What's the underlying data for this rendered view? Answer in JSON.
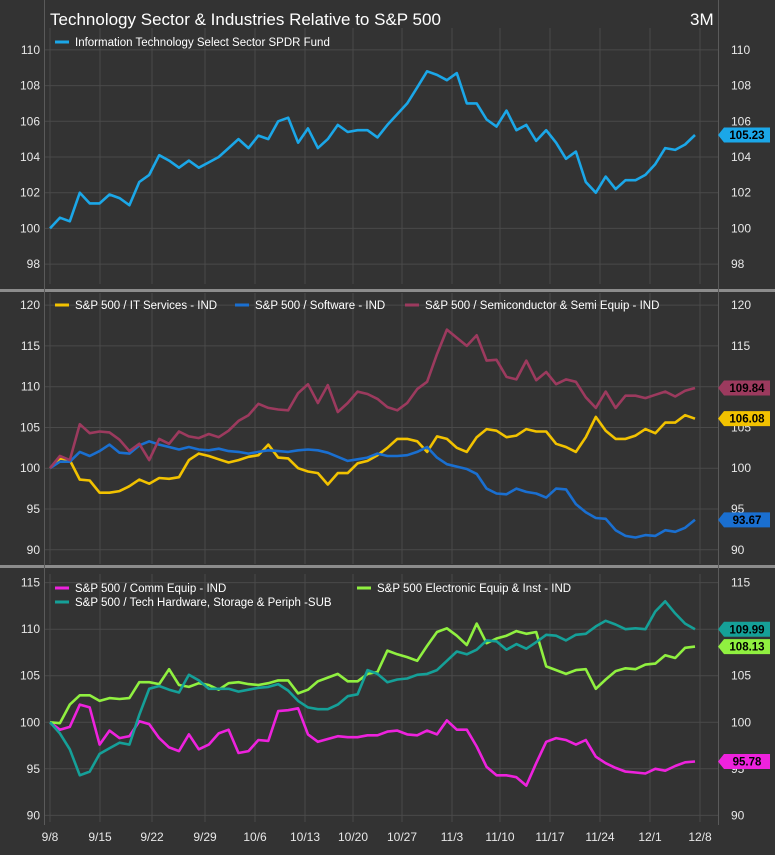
{
  "title": "Technology Sector & Industries Relative to S&P 500",
  "period": "3M",
  "colors": {
    "background": "#000000",
    "panel": "#333333",
    "grid": "#4a4a4a",
    "divider": "#8c8c8c"
  },
  "chart_data": [
    {
      "type": "line",
      "panel": "top",
      "ylim": [
        97,
        111
      ],
      "yticks": [
        98,
        100,
        102,
        104,
        106,
        108,
        110
      ],
      "x_tick_labels": [
        "9/8",
        "9/15",
        "9/22",
        "9/29",
        "10/6",
        "10/13",
        "10/20",
        "10/27",
        "11/3",
        "11/10",
        "11/17",
        "11/24",
        "12/1",
        "12/8"
      ],
      "series": [
        {
          "name": "Information Technology Select Sector SPDR Fund",
          "color": "#1ba7e8",
          "last_label": "105.23",
          "values": [
            100,
            100.6,
            100.4,
            102,
            101.4,
            101.4,
            101.9,
            101.7,
            101.3,
            102.6,
            103,
            104.1,
            103.8,
            103.4,
            103.8,
            103.4,
            103.7,
            104,
            104.5,
            105,
            104.5,
            105.2,
            105,
            106,
            106.2,
            104.8,
            105.6,
            104.5,
            105,
            105.8,
            105.4,
            105.5,
            105.5,
            105.1,
            105.8,
            106.4,
            107,
            107.9,
            108.8,
            108.6,
            108.3,
            108.7,
            107,
            107,
            106.1,
            105.7,
            106.6,
            105.5,
            105.8,
            104.9,
            105.5,
            104.8,
            103.9,
            104.3,
            102.6,
            102,
            102.9,
            102.2,
            102.7,
            102.7,
            103,
            103.6,
            104.5,
            104.4,
            104.7,
            105.23
          ]
        }
      ]
    },
    {
      "type": "line",
      "panel": "middle",
      "ylim": [
        88.5,
        121
      ],
      "yticks": [
        90,
        95,
        100,
        105,
        110,
        115,
        120
      ],
      "series": [
        {
          "name": "S&P 500 / IT Services - IND",
          "color": "#f2c200",
          "last_label": "106.08",
          "values": [
            100,
            101.2,
            101,
            98.6,
            98.5,
            97,
            97,
            97.2,
            97.8,
            98.6,
            98.1,
            98.8,
            98.7,
            98.9,
            101,
            101.8,
            101.5,
            101.1,
            100.7,
            101,
            101.4,
            101.6,
            102.9,
            101.3,
            101.2,
            100,
            99.6,
            99.4,
            98,
            99.4,
            99.4,
            100.6,
            100.9,
            101.6,
            102.5,
            103.6,
            103.6,
            103.3,
            102,
            103.9,
            103.6,
            102.5,
            102,
            103.8,
            104.8,
            104.6,
            103.8,
            104,
            104.8,
            104.5,
            104.5,
            103,
            102.6,
            102,
            103.8,
            106.3,
            104.6,
            103.6,
            103.6,
            104,
            104.8,
            104.3,
            105.6,
            105.6,
            106.5,
            106.08
          ]
        },
        {
          "name": "S&P 500 / Software - IND",
          "color": "#1a6fd0",
          "last_label": "93.67",
          "values": [
            100,
            100.8,
            100.8,
            102,
            101.5,
            102.1,
            102.9,
            101.9,
            101.8,
            102.8,
            103.3,
            102.9,
            102.6,
            102.3,
            102.6,
            102.3,
            102.2,
            102.4,
            102.1,
            102,
            101.8,
            102,
            102.2,
            102.1,
            102,
            102.2,
            102.3,
            102.2,
            101.9,
            101.4,
            100.9,
            101.1,
            101.3,
            101.8,
            101.5,
            101.5,
            101.6,
            102,
            102.6,
            101.3,
            100.5,
            100.2,
            99.9,
            99.3,
            97.5,
            96.9,
            96.8,
            97.5,
            97.1,
            96.9,
            96.4,
            97.5,
            97.4,
            95.6,
            94.6,
            93.9,
            93.8,
            92.4,
            91.7,
            91.5,
            91.8,
            91.7,
            92.4,
            92.2,
            92.7,
            93.67
          ]
        },
        {
          "name": "S&P 500 / Semiconductor & Semi Equip - IND",
          "color": "#9c3a5e",
          "last_label": "109.84",
          "values": [
            100,
            101.5,
            101,
            105.4,
            104.3,
            104.5,
            104.4,
            103.5,
            102.1,
            103,
            101,
            103.6,
            103,
            104.5,
            103.9,
            103.7,
            104.2,
            103.8,
            104.6,
            105.8,
            106.5,
            107.9,
            107.4,
            107.2,
            107.1,
            109.2,
            110.3,
            108,
            110.2,
            106.9,
            108,
            109.4,
            109.1,
            108.5,
            107.5,
            107.1,
            108,
            109.7,
            110.6,
            114,
            117,
            116,
            115,
            116.3,
            113.2,
            113.3,
            111.2,
            110.9,
            113.2,
            110.8,
            111.8,
            110.3,
            110.9,
            110.6,
            108.7,
            107.4,
            109.4,
            107.4,
            108.9,
            108.9,
            108.6,
            109,
            109.4,
            108.8,
            109.5,
            109.84
          ]
        }
      ]
    },
    {
      "type": "line",
      "panel": "bottom",
      "ylim": [
        89.5,
        115.5
      ],
      "yticks": [
        90,
        95,
        100,
        105,
        110,
        115
      ],
      "x_tick_labels": [
        "9/8",
        "9/15",
        "9/22",
        "9/29",
        "10/6",
        "10/13",
        "10/20",
        "10/27",
        "11/3",
        "11/10",
        "11/17",
        "11/24",
        "12/1",
        "12/8"
      ],
      "series": [
        {
          "name": "S&P 500 / Comm Equip - IND",
          "color": "#ee22dd",
          "last_label": "95.78",
          "values": [
            100,
            99.2,
            99.5,
            101.9,
            101.6,
            97.6,
            99.1,
            98.3,
            98.5,
            100.1,
            99.8,
            98.3,
            97.3,
            96.9,
            98.7,
            97.1,
            97.6,
            98.8,
            99.2,
            96.7,
            96.9,
            98.1,
            98,
            101.2,
            101.3,
            101.5,
            98.7,
            97.9,
            98.2,
            98.5,
            98.4,
            98.4,
            98.6,
            98.6,
            99,
            99.1,
            98.7,
            98.6,
            99.1,
            98.7,
            100.2,
            99.2,
            99.2,
            97.4,
            95.2,
            94.3,
            94.3,
            94.1,
            93.2,
            95.6,
            97.9,
            98.3,
            98.1,
            97.6,
            98.1,
            96.3,
            95.6,
            95.1,
            94.7,
            94.6,
            94.5,
            95,
            94.8,
            95.3,
            95.7,
            95.78
          ]
        },
        {
          "name": "S&P 500 Electronic Equip & Inst - IND",
          "color": "#90f040",
          "last_label": "108.13",
          "values": [
            100,
            99.9,
            101.9,
            102.9,
            102.9,
            102.3,
            102.6,
            102.5,
            102.6,
            104.3,
            104.3,
            104.1,
            105.7,
            104,
            103.8,
            104.2,
            104,
            103.5,
            104.2,
            104.3,
            104.1,
            104,
            104.2,
            104.5,
            104.5,
            103.1,
            103.5,
            104.4,
            104.8,
            105.2,
            104.4,
            104.4,
            105.2,
            105.4,
            107.7,
            107.3,
            107,
            106.6,
            108.2,
            109.7,
            110.1,
            109.3,
            108.3,
            110.6,
            108.5,
            109,
            109.3,
            109.8,
            109.5,
            109.7,
            106,
            105.6,
            105.2,
            105.6,
            105.7,
            103.6,
            104.6,
            105.5,
            105.8,
            105.7,
            106.2,
            106.3,
            107.2,
            106.9,
            108,
            108.13
          ]
        },
        {
          "name": "S&P 500 / Tech Hardware, Storage & Periph -SUB",
          "color": "#15a098",
          "last_label": "109.99",
          "values": [
            100,
            98.8,
            97.1,
            94.3,
            94.7,
            96.6,
            97.2,
            97.8,
            97.6,
            100.8,
            103.6,
            103.9,
            103.5,
            103.2,
            105.1,
            104.5,
            103.6,
            103.6,
            103.6,
            103.3,
            103.5,
            103.7,
            103.8,
            104.1,
            103.4,
            102.3,
            101.6,
            101.4,
            101.4,
            101.9,
            102.8,
            103,
            105.6,
            105.2,
            104.3,
            104.6,
            104.7,
            105.1,
            105.2,
            105.6,
            106.6,
            107.6,
            107.3,
            107.8,
            108.8,
            108.7,
            107.8,
            108.4,
            107.9,
            108.6,
            109.4,
            109.3,
            108.8,
            109.4,
            109.5,
            110.3,
            110.9,
            110.5,
            110,
            110.1,
            110,
            111.9,
            113,
            111.7,
            110.6,
            109.99
          ]
        }
      ]
    }
  ]
}
